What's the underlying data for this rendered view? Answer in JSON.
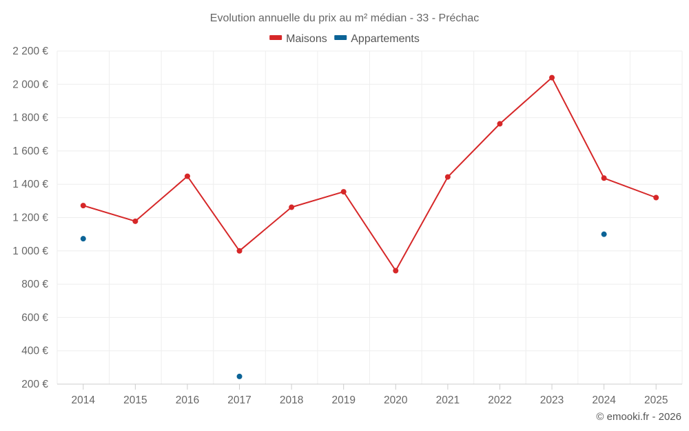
{
  "chart_data": {
    "type": "line",
    "title": "Evolution annuelle du prix au m² médian - 33 - Préchac",
    "categories": [
      "2014",
      "2015",
      "2016",
      "2017",
      "2018",
      "2019",
      "2020",
      "2021",
      "2022",
      "2023",
      "2024",
      "2025"
    ],
    "series": [
      {
        "name": "Maisons",
        "color": "#d62728",
        "style": "line-markers",
        "values": [
          1272,
          1178,
          1448,
          1000,
          1262,
          1355,
          881,
          1444,
          1763,
          2040,
          1437,
          1320
        ]
      },
      {
        "name": "Appartements",
        "color": "#0b6396",
        "style": "markers",
        "values": [
          1073,
          null,
          null,
          246,
          null,
          null,
          null,
          null,
          null,
          null,
          1100,
          null
        ]
      }
    ],
    "ylim": [
      200,
      2200
    ],
    "yticks": [
      200,
      400,
      600,
      800,
      1000,
      1200,
      1400,
      1600,
      1800,
      2000,
      2200
    ],
    "ytick_labels": [
      "200 €",
      "400 €",
      "600 €",
      "800 €",
      "1 000 €",
      "1 200 €",
      "1 400 €",
      "1 600 €",
      "1 800 €",
      "2 000 €",
      "2 200 €"
    ],
    "xlabel": "",
    "ylabel": "",
    "grid": true,
    "legend_position": "top-center"
  },
  "credit": "© emooki.fr - 2026"
}
